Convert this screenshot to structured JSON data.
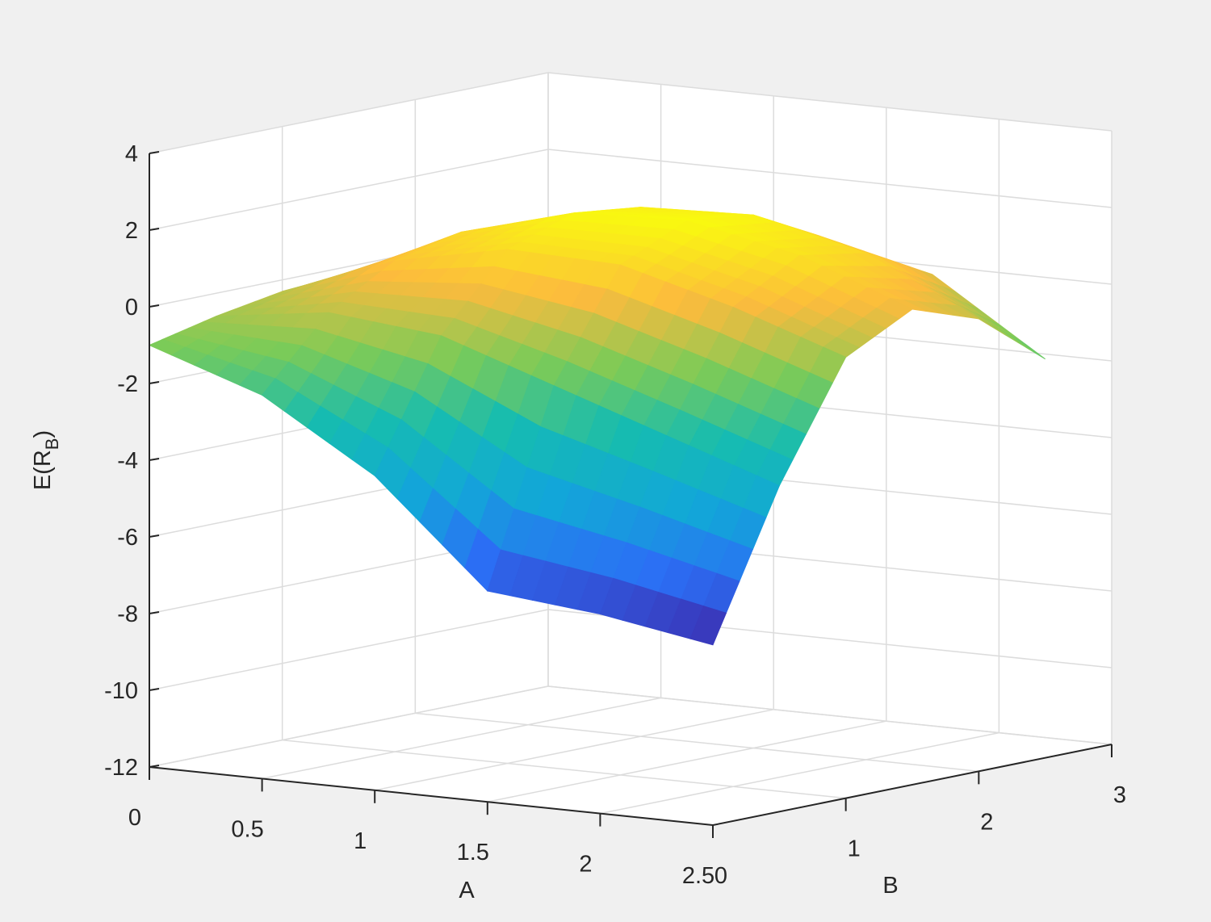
{
  "chart_data": {
    "type": "surface3d",
    "xlabel": "A",
    "ylabel": "B",
    "zlabel": [
      "E(R",
      "B",
      ")"
    ],
    "x": [
      0,
      0.5,
      1,
      1.5,
      2,
      2.5
    ],
    "y": [
      0,
      0.5,
      1,
      1.5,
      2,
      2.5
    ],
    "z": [
      [
        -1.0,
        -2.0,
        -3.8,
        -6.5,
        -6.8,
        -7.3
      ],
      [
        -0.6,
        -0.2,
        -0.5,
        -1.5,
        -2.5,
        -3.5
      ],
      [
        -0.3,
        0.8,
        1.4,
        1.3,
        0.5,
        -0.5
      ],
      [
        -0.2,
        1.2,
        2.0,
        2.1,
        1.5,
        0.4
      ],
      [
        -0.3,
        1.0,
        1.8,
        1.9,
        1.2,
        -0.2
      ],
      [
        -0.6,
        0.4,
        1.0,
        1.0,
        0.3,
        -1.6
      ]
    ],
    "xlim": [
      0,
      2.5
    ],
    "ylim": [
      0,
      3
    ],
    "zlim": [
      -12,
      4
    ],
    "xticks": [
      0,
      0.5,
      1,
      1.5,
      2,
      2.5
    ],
    "yticks": [
      0,
      1,
      2,
      3
    ],
    "zticks": [
      -12,
      -10,
      -8,
      -6,
      -4,
      -2,
      0,
      2,
      4
    ],
    "colormap": [
      "#3e26a8",
      "#2b6ff5",
      "#12a7d8",
      "#16bcb0",
      "#7ccb57",
      "#fcbb3d",
      "#f9fb0e"
    ],
    "grid": true
  }
}
